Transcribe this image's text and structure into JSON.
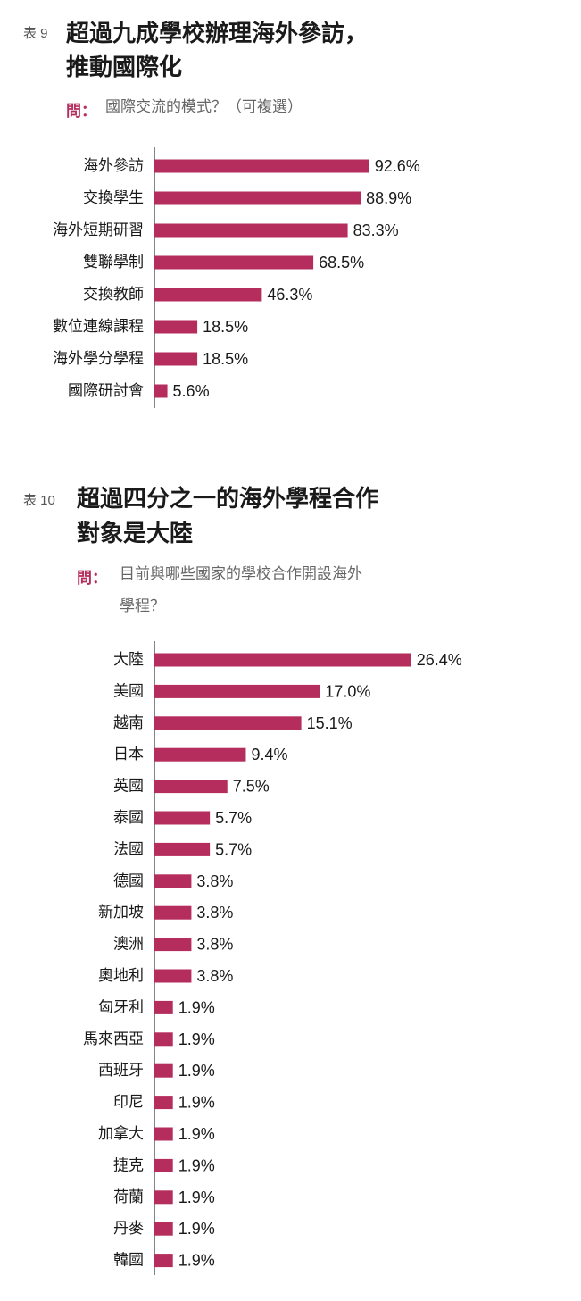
{
  "chart_data": [
    {
      "type": "bar",
      "orientation": "horizontal",
      "table_label": "表 9",
      "title_lines": [
        "超過九成學校辦理海外參訪，",
        "推動國際化"
      ],
      "question_label": "問：",
      "question_lines": [
        "國際交流的模式？（可複選）"
      ],
      "categories": [
        "海外參訪",
        "交換學生",
        "海外短期研習",
        "雙聯學制",
        "交換教師",
        "數位連線課程",
        "海外學分學程",
        "國際研討會"
      ],
      "values": [
        92.6,
        88.9,
        83.3,
        68.5,
        46.3,
        18.5,
        18.5,
        5.6
      ],
      "value_labels": [
        "92.6%",
        "88.9%",
        "83.3%",
        "68.5%",
        "46.3%",
        "18.5%",
        "18.5%",
        "5.6%"
      ],
      "unit": "%",
      "bar_color": "#b52d5c"
    },
    {
      "type": "bar",
      "orientation": "horizontal",
      "table_label": "表 10",
      "title_lines": [
        "超過四分之一的海外學程合作",
        "對象是大陸"
      ],
      "question_label": "問：",
      "question_lines": [
        "目前與哪些國家的學校合作開設海外",
        "學程？"
      ],
      "categories": [
        "大陸",
        "美國",
        "越南",
        "日本",
        "英國",
        "泰國",
        "法國",
        "德國",
        "新加坡",
        "澳洲",
        "奧地利",
        "匈牙利",
        "馬來西亞",
        "西班牙",
        "印尼",
        "加拿大",
        "捷克",
        "荷蘭",
        "丹麥",
        "韓國"
      ],
      "values": [
        26.4,
        17.0,
        15.1,
        9.4,
        7.5,
        5.7,
        5.7,
        3.8,
        3.8,
        3.8,
        3.8,
        1.9,
        1.9,
        1.9,
        1.9,
        1.9,
        1.9,
        1.9,
        1.9,
        1.9
      ],
      "value_labels": [
        "26.4%",
        "17.0%",
        "15.1%",
        "9.4%",
        "7.5%",
        "5.7%",
        "5.7%",
        "3.8%",
        "3.8%",
        "3.8%",
        "3.8%",
        "1.9%",
        "1.9%",
        "1.9%",
        "1.9%",
        "1.9%",
        "1.9%",
        "1.9%",
        "1.9%",
        "1.9%"
      ],
      "unit": "%",
      "bar_color": "#b52d5c"
    }
  ]
}
